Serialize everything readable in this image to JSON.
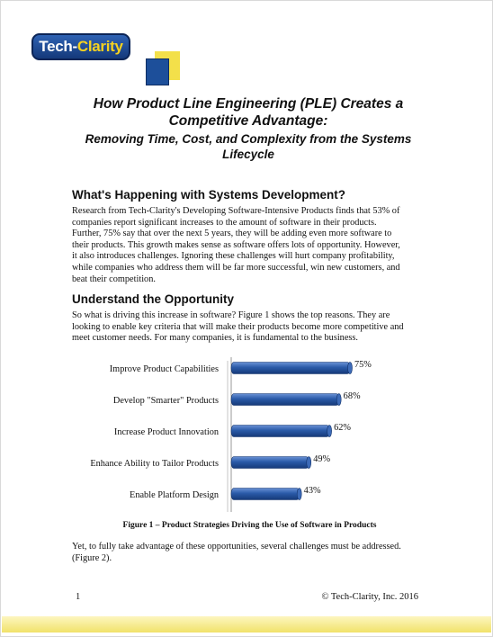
{
  "logo": {
    "text_part1": "Tech-",
    "text_part2": "Clarity",
    "accent_color": "#f6d21f",
    "brand_color": "#1d4f9a"
  },
  "title": {
    "line1": "How Product Line Engineering (PLE) Creates a",
    "line2": "Competitive Advantage:",
    "sub1": "Removing Time, Cost, and Complexity from the Systems",
    "sub2": "Lifecycle"
  },
  "section1": {
    "heading": "What's Happening with Systems Development?",
    "lines": [
      "Research from Tech-Clarity's Developing Software-Intensive Products finds that 53% of",
      "companies report significant increases to the amount of software in their products.",
      "Further, 75% say that over the next 5 years, they will be adding even more software to",
      "their products. This growth makes sense as software offers lots of opportunity. However,",
      "it also introduces challenges.  Ignoring these challenges will hurt company profitability,",
      "while companies who address them will be far more successful, win new customers, and",
      "beat their competition."
    ]
  },
  "section2": {
    "heading": "Understand the Opportunity",
    "lines": [
      "So what is driving this increase in software? Figure 1 shows the top reasons. They are",
      "looking to enable key criteria that will make their products become more competitive and",
      "meet customer needs. For many companies, it is fundamental to the business."
    ]
  },
  "chart_data": {
    "type": "bar",
    "orientation": "horizontal",
    "categories": [
      "Improve Product Capabilities",
      "Develop \"Smarter\" Products",
      "Increase Product Innovation",
      "Enhance Ability to Tailor Products",
      "Enable Platform Design"
    ],
    "values": [
      75,
      68,
      62,
      49,
      43
    ],
    "value_labels": [
      "75%",
      "68%",
      "62%",
      "49%",
      "43%"
    ],
    "xlim": [
      0,
      100
    ],
    "bar_color": "#2a5aa8",
    "grid": false,
    "legend": false
  },
  "caption": "Figure 1 – Product Strategies Driving the Use of Software in Products",
  "after_chart": {
    "lines": [
      "Yet, to fully take advantage of these opportunities, several challenges must be addressed.",
      "(Figure 2)."
    ]
  },
  "footer": {
    "page_number": "1",
    "copyright": "© Tech-Clarity, Inc. 2016"
  }
}
